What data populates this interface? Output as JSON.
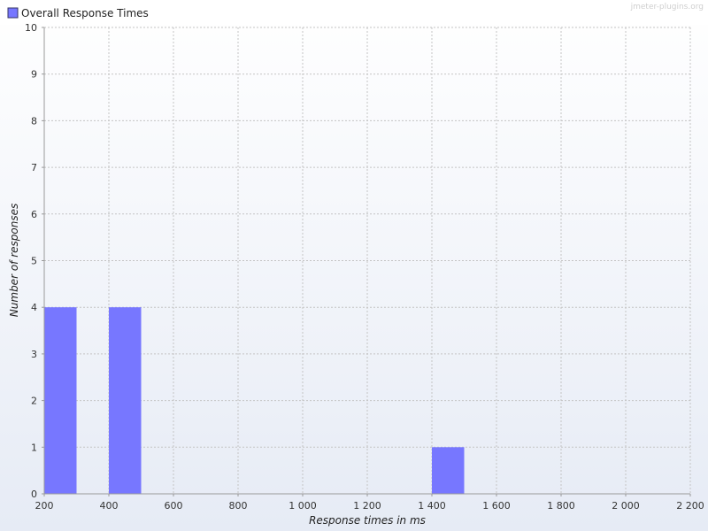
{
  "watermark": "jmeter-plugins.org",
  "chart_data": {
    "type": "bar",
    "legend": {
      "position": "top-left",
      "entries": [
        "Overall Response Times"
      ]
    },
    "series": [
      {
        "name": "Overall Response Times",
        "color": "#7777ff",
        "bins": [
          {
            "x0": 200,
            "x1": 300,
            "value": 4
          },
          {
            "x0": 400,
            "x1": 500,
            "value": 4
          },
          {
            "x0": 1400,
            "x1": 1500,
            "value": 1
          }
        ]
      }
    ],
    "xlabel": "Response times in ms",
    "ylabel": "Number of responses",
    "xlim": [
      200,
      2200
    ],
    "ylim": [
      0,
      10
    ],
    "xticks": [
      200,
      400,
      600,
      800,
      1000,
      1200,
      1400,
      1600,
      1800,
      2000,
      2200
    ],
    "xtick_labels": [
      "200",
      "400",
      "600",
      "800",
      "1 000",
      "1 200",
      "1 400",
      "1 600",
      "1 800",
      "2 000",
      "2 200"
    ],
    "yticks": [
      0,
      1,
      2,
      3,
      4,
      5,
      6,
      7,
      8,
      9,
      10
    ],
    "grid": true
  }
}
